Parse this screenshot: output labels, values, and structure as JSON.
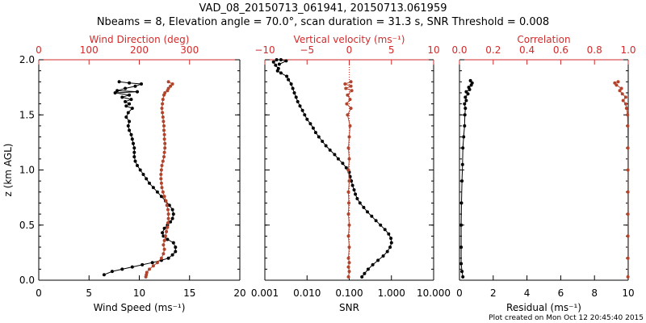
{
  "figure": {
    "title_line1": "VAD_08_20150713_061941, 20150713.061959",
    "title_line2": "Nbeams = 8, Elevation angle = 70.0°, scan duration = 31.3 s, SNR Threshold = 0.008",
    "footer": "Plot created on Mon Oct 12 20:45:40 2015"
  },
  "colors": {
    "black": "#000000",
    "red": "#d22b2b",
    "brown": "#b0442c"
  },
  "chart_data": [
    {
      "type": "line",
      "ylabel": "z (km AGL)",
      "ylim": [
        0,
        2.0
      ],
      "yticks": [
        0.0,
        0.5,
        1.0,
        1.5,
        2.0
      ],
      "ytick_labels": [
        "0.0",
        "0.5",
        "1.0",
        "1.5",
        "2.0"
      ],
      "xlabel_bottom": "Wind Speed (ms⁻¹)",
      "xlim_bottom": [
        0,
        20
      ],
      "xticks_bottom": [
        0,
        5,
        10,
        15,
        20
      ],
      "xtick_labels_bottom": [
        "0",
        "5",
        "10",
        "15",
        "20"
      ],
      "xlabel_top": "Wind Direction (deg)",
      "xlim_top": [
        0,
        400
      ],
      "xticks_top": [
        0,
        100,
        200,
        300
      ],
      "xtick_labels_top": [
        "0",
        "100",
        "200",
        "300"
      ],
      "series": [
        {
          "axis": "bottom",
          "color": "black",
          "points": [
            [
              6.5,
              0.05
            ],
            [
              7.3,
              0.08
            ],
            [
              8.3,
              0.1
            ],
            [
              9.3,
              0.12
            ],
            [
              10.3,
              0.14
            ],
            [
              11.3,
              0.16
            ],
            [
              12.2,
              0.18
            ],
            [
              12.9,
              0.2
            ],
            [
              13.3,
              0.23
            ],
            [
              13.6,
              0.26
            ],
            [
              13.6,
              0.3
            ],
            [
              13.4,
              0.34
            ],
            [
              12.8,
              0.37
            ],
            [
              12.4,
              0.4
            ],
            [
              12.3,
              0.43
            ],
            [
              12.5,
              0.47
            ],
            [
              12.8,
              0.5
            ],
            [
              13.1,
              0.53
            ],
            [
              13.3,
              0.56
            ],
            [
              13.4,
              0.6
            ],
            [
              13.3,
              0.64
            ],
            [
              13.0,
              0.68
            ],
            [
              12.6,
              0.72
            ],
            [
              12.2,
              0.76
            ],
            [
              11.8,
              0.8
            ],
            [
              11.4,
              0.84
            ],
            [
              11.0,
              0.88
            ],
            [
              10.7,
              0.92
            ],
            [
              10.4,
              0.96
            ],
            [
              10.1,
              1.0
            ],
            [
              9.8,
              1.04
            ],
            [
              9.6,
              1.08
            ],
            [
              9.5,
              1.12
            ],
            [
              9.5,
              1.16
            ],
            [
              9.5,
              1.2
            ],
            [
              9.4,
              1.24
            ],
            [
              9.3,
              1.28
            ],
            [
              9.2,
              1.32
            ],
            [
              9.0,
              1.36
            ],
            [
              8.9,
              1.4
            ],
            [
              9.0,
              1.44
            ],
            [
              8.7,
              1.48
            ],
            [
              8.9,
              1.52
            ],
            [
              9.3,
              1.56
            ],
            [
              8.7,
              1.58
            ],
            [
              9.0,
              1.6
            ],
            [
              8.6,
              1.62
            ],
            [
              9.2,
              1.64
            ],
            [
              8.3,
              1.66
            ],
            [
              9.0,
              1.68
            ],
            [
              7.6,
              1.7
            ],
            [
              9.8,
              1.71
            ],
            [
              7.8,
              1.72
            ],
            [
              8.6,
              1.74
            ],
            [
              9.6,
              1.76
            ],
            [
              10.2,
              1.78
            ],
            [
              9.0,
              1.79
            ],
            [
              8.0,
              1.8
            ]
          ]
        },
        {
          "axis": "top",
          "color": "brown",
          "points": [
            [
              213,
              0.03
            ],
            [
              214,
              0.05
            ],
            [
              215,
              0.07
            ],
            [
              220,
              0.1
            ],
            [
              228,
              0.13
            ],
            [
              236,
              0.16
            ],
            [
              244,
              0.2
            ],
            [
              248,
              0.24
            ],
            [
              250,
              0.28
            ],
            [
              248,
              0.32
            ],
            [
              250,
              0.36
            ],
            [
              252,
              0.4
            ],
            [
              254,
              0.44
            ],
            [
              256,
              0.48
            ],
            [
              257,
              0.52
            ],
            [
              258,
              0.56
            ],
            [
              258,
              0.6
            ],
            [
              257,
              0.64
            ],
            [
              255,
              0.68
            ],
            [
              253,
              0.72
            ],
            [
              250,
              0.76
            ],
            [
              247,
              0.8
            ],
            [
              245,
              0.84
            ],
            [
              244,
              0.88
            ],
            [
              243,
              0.92
            ],
            [
              243,
              0.96
            ],
            [
              244,
              1.0
            ],
            [
              245,
              1.04
            ],
            [
              247,
              1.08
            ],
            [
              249,
              1.12
            ],
            [
              250,
              1.16
            ],
            [
              251,
              1.2
            ],
            [
              251,
              1.24
            ],
            [
              250,
              1.28
            ],
            [
              250,
              1.32
            ],
            [
              249,
              1.36
            ],
            [
              249,
              1.4
            ],
            [
              248,
              1.44
            ],
            [
              247,
              1.48
            ],
            [
              246,
              1.52
            ],
            [
              245,
              1.56
            ],
            [
              246,
              1.6
            ],
            [
              247,
              1.64
            ],
            [
              249,
              1.68
            ],
            [
              251,
              1.7
            ],
            [
              256,
              1.72
            ],
            [
              258,
              1.74
            ],
            [
              262,
              1.76
            ],
            [
              266,
              1.78
            ],
            [
              258,
              1.8
            ]
          ]
        }
      ]
    },
    {
      "type": "line",
      "ylim": [
        0,
        2.0
      ],
      "xlabel_bottom": "SNR",
      "xscale_bottom": "log",
      "xlim_bottom": [
        0.001,
        10
      ],
      "xticks_bottom": [
        0.001,
        0.01,
        0.1,
        1,
        10
      ],
      "xtick_labels_bottom": [
        "0.001",
        "0.010",
        "0.100",
        "1.000",
        "10.000"
      ],
      "xlabel_top": "Vertical velocity (ms⁻¹)",
      "xlim_top": [
        -10,
        10
      ],
      "xticks_top": [
        -10,
        -5,
        0,
        5,
        10
      ],
      "xtick_labels_top": [
        "−10",
        "−5",
        "0",
        "5",
        "10"
      ],
      "reference_line": {
        "axis": "top",
        "value": 0,
        "style": "dotted",
        "color": "red"
      },
      "series": [
        {
          "axis": "bottom",
          "color": "black",
          "points": [
            [
              0.2,
              0.03
            ],
            [
              0.23,
              0.06
            ],
            [
              0.28,
              0.1
            ],
            [
              0.36,
              0.14
            ],
            [
              0.48,
              0.18
            ],
            [
              0.64,
              0.22
            ],
            [
              0.8,
              0.26
            ],
            [
              0.93,
              0.3
            ],
            [
              1.0,
              0.34
            ],
            [
              0.97,
              0.38
            ],
            [
              0.86,
              0.42
            ],
            [
              0.7,
              0.46
            ],
            [
              0.55,
              0.5
            ],
            [
              0.43,
              0.54
            ],
            [
              0.34,
              0.58
            ],
            [
              0.27,
              0.62
            ],
            [
              0.22,
              0.66
            ],
            [
              0.18,
              0.7
            ],
            [
              0.155,
              0.74
            ],
            [
              0.14,
              0.78
            ],
            [
              0.13,
              0.82
            ],
            [
              0.12,
              0.86
            ],
            [
              0.112,
              0.9
            ],
            [
              0.105,
              0.94
            ],
            [
              0.1,
              0.98
            ],
            [
              0.095,
              1.0
            ],
            [
              0.085,
              1.02
            ],
            [
              0.07,
              1.06
            ],
            [
              0.055,
              1.1
            ],
            [
              0.045,
              1.14
            ],
            [
              0.035,
              1.18
            ],
            [
              0.028,
              1.22
            ],
            [
              0.023,
              1.26
            ],
            [
              0.019,
              1.3
            ],
            [
              0.016,
              1.34
            ],
            [
              0.014,
              1.38
            ],
            [
              0.012,
              1.42
            ],
            [
              0.01,
              1.46
            ],
            [
              0.0088,
              1.5
            ],
            [
              0.0078,
              1.54
            ],
            [
              0.0068,
              1.58
            ],
            [
              0.006,
              1.62
            ],
            [
              0.0055,
              1.66
            ],
            [
              0.005,
              1.7
            ],
            [
              0.0046,
              1.74
            ],
            [
              0.0042,
              1.78
            ],
            [
              0.0036,
              1.82
            ],
            [
              0.0033,
              1.85
            ],
            [
              0.0024,
              1.88
            ],
            [
              0.002,
              1.9
            ],
            [
              0.0021,
              1.92
            ],
            [
              0.0018,
              1.95
            ],
            [
              0.0016,
              1.98
            ],
            [
              0.0019,
              2.0
            ],
            [
              0.0024,
              2.0
            ],
            [
              0.0032,
              1.99
            ],
            [
              0.0022,
              1.96
            ]
          ]
        },
        {
          "axis": "top",
          "color": "brown",
          "points": [
            [
              -0.1,
              0.03
            ],
            [
              0.0,
              0.08
            ],
            [
              -0.1,
              0.12
            ],
            [
              0.0,
              0.16
            ],
            [
              -0.1,
              0.2
            ],
            [
              0.0,
              0.3
            ],
            [
              -0.1,
              0.4
            ],
            [
              0.0,
              0.5
            ],
            [
              -0.1,
              0.6
            ],
            [
              -0.05,
              0.7
            ],
            [
              -0.1,
              0.8
            ],
            [
              0.0,
              0.9
            ],
            [
              -0.1,
              1.0
            ],
            [
              0.0,
              1.1
            ],
            [
              -0.1,
              1.2
            ],
            [
              0.0,
              1.3
            ],
            [
              0.1,
              1.4
            ],
            [
              -0.2,
              1.5
            ],
            [
              0.2,
              1.56
            ],
            [
              -0.3,
              1.6
            ],
            [
              0.1,
              1.64
            ],
            [
              -0.2,
              1.68
            ],
            [
              0.3,
              1.72
            ],
            [
              -0.4,
              1.74
            ],
            [
              0.2,
              1.76
            ],
            [
              -0.5,
              1.78
            ],
            [
              0.2,
              1.8
            ]
          ]
        }
      ]
    },
    {
      "type": "line",
      "ylim": [
        0,
        2.0
      ],
      "xlabel_bottom": "Residual (ms⁻¹)",
      "xlim_bottom": [
        0,
        10
      ],
      "xticks_bottom": [
        0,
        2,
        4,
        6,
        8,
        10
      ],
      "xtick_labels_bottom": [
        "0",
        "2",
        "4",
        "6",
        "8",
        "10"
      ],
      "xlabel_top": "Correlation",
      "xlim_top": [
        0,
        1.0
      ],
      "xticks_top": [
        0,
        0.2,
        0.4,
        0.6,
        0.8,
        1.0
      ],
      "xtick_labels_top": [
        "0.0",
        "0.2",
        "0.4",
        "0.6",
        "0.8",
        "1.0"
      ],
      "series": [
        {
          "axis": "bottom",
          "color": "black",
          "points": [
            [
              0.2,
              0.03
            ],
            [
              0.15,
              0.08
            ],
            [
              0.1,
              0.15
            ],
            [
              0.1,
              0.3
            ],
            [
              0.1,
              0.5
            ],
            [
              0.12,
              0.7
            ],
            [
              0.15,
              0.9
            ],
            [
              0.18,
              1.05
            ],
            [
              0.2,
              1.2
            ],
            [
              0.25,
              1.3
            ],
            [
              0.3,
              1.4
            ],
            [
              0.32,
              1.5
            ],
            [
              0.35,
              1.56
            ],
            [
              0.3,
              1.6
            ],
            [
              0.4,
              1.63
            ],
            [
              0.35,
              1.66
            ],
            [
              0.5,
              1.69
            ],
            [
              0.4,
              1.71
            ],
            [
              0.6,
              1.73
            ],
            [
              0.55,
              1.75
            ],
            [
              0.7,
              1.77
            ],
            [
              0.75,
              1.79
            ],
            [
              0.65,
              1.81
            ]
          ]
        },
        {
          "axis": "top",
          "color": "brown",
          "points": [
            [
              0.998,
              0.03
            ],
            [
              0.998,
              0.2
            ],
            [
              0.998,
              0.4
            ],
            [
              0.998,
              0.6
            ],
            [
              0.998,
              0.8
            ],
            [
              0.998,
              1.0
            ],
            [
              0.998,
              1.2
            ],
            [
              0.997,
              1.4
            ],
            [
              0.996,
              1.5
            ],
            [
              0.99,
              1.56
            ],
            [
              0.985,
              1.6
            ],
            [
              0.97,
              1.63
            ],
            [
              0.985,
              1.66
            ],
            [
              0.965,
              1.69
            ],
            [
              0.95,
              1.72
            ],
            [
              0.96,
              1.74
            ],
            [
              0.93,
              1.77
            ],
            [
              0.92,
              1.79
            ],
            [
              0.94,
              1.8
            ]
          ]
        }
      ]
    }
  ]
}
